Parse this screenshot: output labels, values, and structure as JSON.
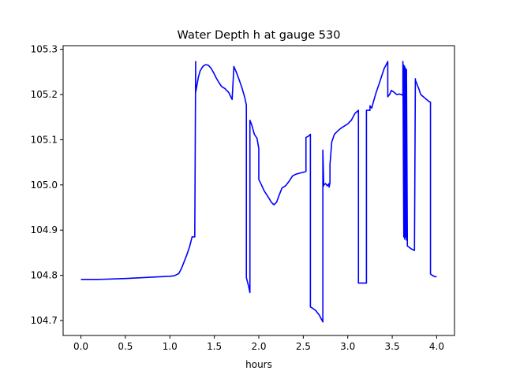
{
  "chart_data": {
    "type": "line",
    "title": "Water Depth h at gauge 530",
    "xlabel": "hours",
    "ylabel": "",
    "xlim": [
      -0.2,
      4.2
    ],
    "ylim": [
      104.667,
      105.308
    ],
    "grid": false,
    "xticks": [
      0.0,
      0.5,
      1.0,
      1.5,
      2.0,
      2.5,
      3.0,
      3.5,
      4.0
    ],
    "xtick_labels": [
      "0.0",
      "0.5",
      "1.0",
      "1.5",
      "2.0",
      "2.5",
      "3.0",
      "3.5",
      "4.0"
    ],
    "yticks": [
      104.7,
      104.8,
      104.9,
      105.0,
      105.1,
      105.2,
      105.3
    ],
    "ytick_labels": [
      "104.7",
      "104.8",
      "104.9",
      "105.0",
      "105.1",
      "105.2",
      "105.3"
    ],
    "series": [
      {
        "color": "#0000ff",
        "x": [
          0.0,
          0.2,
          0.5,
          0.8,
          1.0,
          1.05,
          1.1,
          1.13,
          1.16,
          1.19,
          1.22,
          1.25,
          1.28,
          1.29,
          1.29,
          1.3,
          1.32,
          1.34,
          1.37,
          1.4,
          1.43,
          1.46,
          1.49,
          1.52,
          1.55,
          1.58,
          1.62,
          1.66,
          1.7,
          1.72,
          1.72,
          1.75,
          1.78,
          1.81,
          1.84,
          1.86,
          1.86,
          1.88,
          1.9,
          1.9,
          1.92,
          1.95,
          1.98,
          2.0,
          2.0,
          2.03,
          2.06,
          2.1,
          2.14,
          2.17,
          2.2,
          2.23,
          2.26,
          2.3,
          2.34,
          2.38,
          2.42,
          2.46,
          2.5,
          2.53,
          2.53,
          2.56,
          2.58,
          2.58,
          2.6,
          2.64,
          2.68,
          2.72,
          2.72,
          2.73,
          2.73,
          2.75,
          2.77,
          2.79,
          2.79,
          2.8,
          2.8,
          2.82,
          2.85,
          2.88,
          2.92,
          2.96,
          3.0,
          3.04,
          3.08,
          3.12,
          3.12,
          3.15,
          3.18,
          3.21,
          3.21,
          3.23,
          3.25,
          3.25,
          3.27,
          3.29,
          3.32,
          3.35,
          3.38,
          3.41,
          3.43,
          3.45,
          3.45,
          3.47,
          3.49,
          3.52,
          3.55,
          3.58,
          3.6,
          3.62,
          3.62,
          3.63,
          3.63,
          3.64,
          3.64,
          3.65,
          3.65,
          3.66,
          3.66,
          3.67,
          3.67,
          3.69,
          3.72,
          3.75,
          3.76,
          3.76,
          3.78,
          3.8,
          3.82,
          3.85,
          3.88,
          3.91,
          3.93,
          3.93,
          3.95,
          3.98,
          4.0
        ],
        "y": [
          104.791,
          104.791,
          104.793,
          104.796,
          104.798,
          104.799,
          104.804,
          104.815,
          104.83,
          104.845,
          104.862,
          104.885,
          104.885,
          105.273,
          105.205,
          105.215,
          105.238,
          105.252,
          105.262,
          105.266,
          105.265,
          105.259,
          105.249,
          105.237,
          105.227,
          105.218,
          105.213,
          105.205,
          105.189,
          105.262,
          105.262,
          105.248,
          105.232,
          105.215,
          105.195,
          105.177,
          104.795,
          104.78,
          104.762,
          105.143,
          105.133,
          105.112,
          105.103,
          105.08,
          105.012,
          105.0,
          104.987,
          104.975,
          104.962,
          104.956,
          104.962,
          104.978,
          104.993,
          104.998,
          105.008,
          105.02,
          105.024,
          105.026,
          105.028,
          105.03,
          105.105,
          105.108,
          105.112,
          104.73,
          104.728,
          104.722,
          104.712,
          104.697,
          105.077,
          104.998,
          105.0,
          105.003,
          104.998,
          105.003,
          104.995,
          105.005,
          105.045,
          105.095,
          105.112,
          105.118,
          105.125,
          105.13,
          105.135,
          105.143,
          105.158,
          105.165,
          104.783,
          104.783,
          104.783,
          104.783,
          105.165,
          105.165,
          105.165,
          105.175,
          105.17,
          105.185,
          105.205,
          105.222,
          105.24,
          105.258,
          105.265,
          105.273,
          105.195,
          105.2,
          105.209,
          105.205,
          105.2,
          105.201,
          105.2,
          105.198,
          105.273,
          104.885,
          105.265,
          104.88,
          105.262,
          104.885,
          105.258,
          104.878,
          105.255,
          104.87,
          104.865,
          104.862,
          104.858,
          104.855,
          105.235,
          105.232,
          105.222,
          105.212,
          105.2,
          105.195,
          105.19,
          105.185,
          105.183,
          104.803,
          104.8,
          104.797,
          104.797
        ]
      }
    ]
  }
}
